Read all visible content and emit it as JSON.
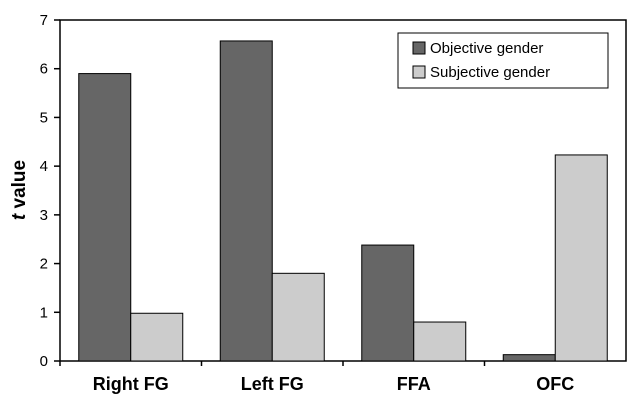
{
  "chart_data": {
    "type": "bar",
    "categories": [
      "Right FG",
      "Left FG",
      "FFA",
      "OFC"
    ],
    "series": [
      {
        "name": "Objective gender",
        "values": [
          5.9,
          6.57,
          2.38,
          0.13
        ],
        "color": "#666666"
      },
      {
        "name": "Subjective gender",
        "values": [
          0.98,
          1.8,
          0.8,
          4.23
        ],
        "color": "#cccccc"
      }
    ],
    "title": "",
    "xlabel": "",
    "ylabel_italic": "t",
    "ylabel_rest": " value",
    "ylim": [
      0,
      7
    ],
    "yticks": [
      0,
      1,
      2,
      3,
      4,
      5,
      6,
      7
    ],
    "grid": false,
    "legend_position": "top-right"
  }
}
